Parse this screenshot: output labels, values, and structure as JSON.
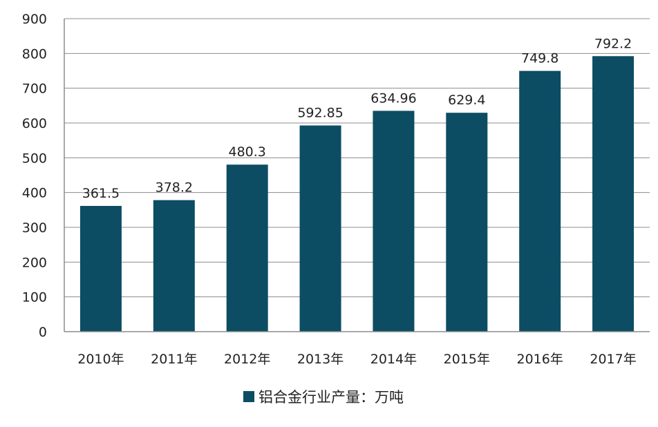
{
  "chart_data": {
    "type": "bar",
    "categories": [
      "2010年",
      "2011年",
      "2012年",
      "2013年",
      "2014年",
      "2015年",
      "2016年",
      "2017年"
    ],
    "series": [
      {
        "name": "铝合金行业产量：万吨",
        "values": [
          361.5,
          378.2,
          480.3,
          592.85,
          634.96,
          629.4,
          749.8,
          792.2
        ],
        "data_labels": [
          "361.5",
          "378.2",
          "480.3",
          "592.85",
          "634.96",
          "629.4",
          "749.8",
          "792.2"
        ]
      }
    ],
    "yticks": [
      0,
      100,
      200,
      300,
      400,
      500,
      600,
      700,
      800,
      900
    ],
    "ylim": [
      0,
      900
    ],
    "grid": true,
    "legend_position": "bottom",
    "colors": {
      "bar": "#0c4d63",
      "grid": "#8c8c8c",
      "axis": "#8c8c8c"
    }
  }
}
